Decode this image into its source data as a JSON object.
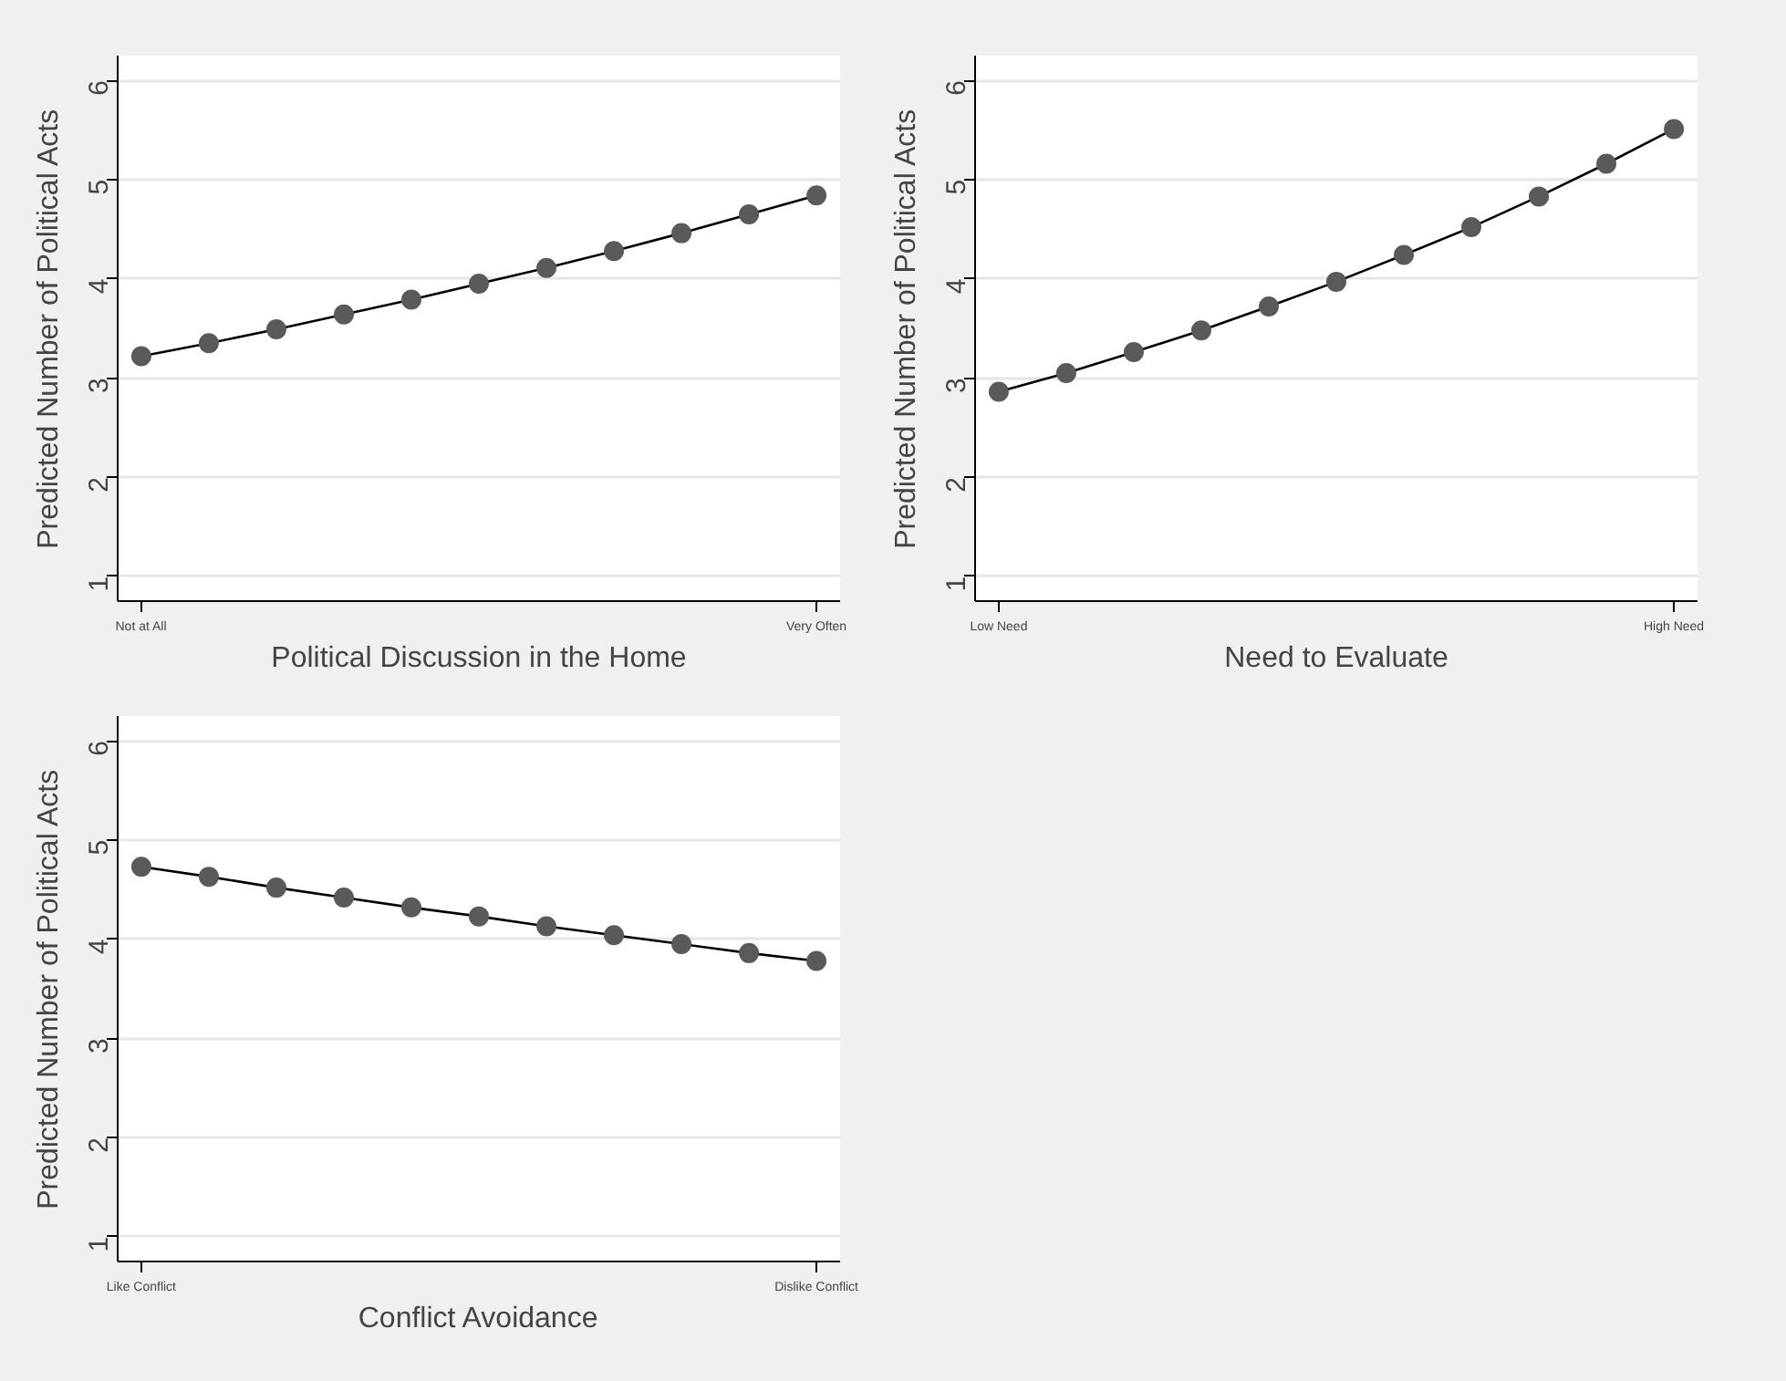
{
  "chart_data": [
    {
      "type": "line",
      "xlabel": "Political Discussion in the Home",
      "ylabel": "Predicted Number of Political Acts",
      "categories": [
        "Not at All",
        null,
        null,
        null,
        null,
        null,
        null,
        null,
        null,
        null,
        "Very Often"
      ],
      "series": [
        {
          "color": "#5a5a5a",
          "values": [
            3.22,
            3.35,
            3.49,
            3.64,
            3.79,
            3.95,
            4.11,
            4.28,
            4.46,
            4.65,
            4.84
          ]
        }
      ],
      "ylim": [
        0.75,
        6.25
      ],
      "yticks": [
        1,
        2,
        3,
        4,
        5,
        6
      ],
      "grid": "y",
      "marker": "circle",
      "line_style": "solid"
    },
    {
      "type": "line",
      "xlabel": "Need to Evaluate",
      "ylabel": "Predicted Number of Political Acts",
      "categories": [
        "Low Need",
        null,
        null,
        null,
        null,
        null,
        null,
        null,
        null,
        null,
        "High Need"
      ],
      "series": [
        {
          "color": "#5a5a5a",
          "values": [
            2.86,
            3.05,
            3.26,
            3.48,
            3.72,
            3.97,
            4.24,
            4.52,
            4.83,
            5.16,
            5.51
          ]
        }
      ],
      "ylim": [
        0.75,
        6.25
      ],
      "yticks": [
        1,
        2,
        3,
        4,
        5,
        6
      ],
      "grid": "y",
      "marker": "circle",
      "line_style": "solid"
    },
    {
      "type": "line",
      "xlabel": "Conflict Avoidance",
      "ylabel": "Predicted Number of Political Acts",
      "categories": [
        "Like Conflict",
        null,
        null,
        null,
        null,
        null,
        null,
        null,
        null,
        null,
        "Dislike Conflict"
      ],
      "series": [
        {
          "color": "#5a5a5a",
          "values": [
            4.73,
            4.63,
            4.52,
            4.42,
            4.32,
            4.23,
            4.13,
            4.04,
            3.95,
            3.86,
            3.78
          ]
        }
      ],
      "ylim": [
        0.75,
        6.25
      ],
      "yticks": [
        1,
        2,
        3,
        4,
        5,
        6
      ],
      "grid": "y",
      "marker": "circle",
      "line_style": "solid"
    }
  ]
}
